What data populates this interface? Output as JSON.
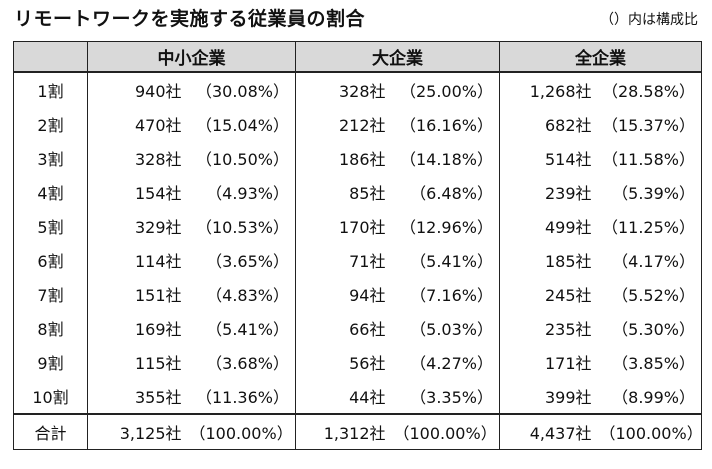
{
  "title": "リモートワークを実施する従業員の割合",
  "note": "（）内は構成比",
  "columns": {
    "stub": "",
    "group1": "中小企業",
    "group2": "大企業",
    "group3": "全企業"
  },
  "rows": [
    {
      "label": "1割",
      "sme": "940社",
      "sme_pct": "（30.08%）",
      "large": "328社",
      "large_pct": "（25.00%）",
      "all": "1,268社",
      "all_pct": "（28.58%）"
    },
    {
      "label": "2割",
      "sme": "470社",
      "sme_pct": "（15.04%）",
      "large": "212社",
      "large_pct": "（16.16%）",
      "all": "682社",
      "all_pct": "（15.37%）"
    },
    {
      "label": "3割",
      "sme": "328社",
      "sme_pct": "（10.50%）",
      "large": "186社",
      "large_pct": "（14.18%）",
      "all": "514社",
      "all_pct": "（11.58%）"
    },
    {
      "label": "4割",
      "sme": "154社",
      "sme_pct": "（4.93%）",
      "large": "85社",
      "large_pct": "（6.48%）",
      "all": "239社",
      "all_pct": "（5.39%）"
    },
    {
      "label": "5割",
      "sme": "329社",
      "sme_pct": "（10.53%）",
      "large": "170社",
      "large_pct": "（12.96%）",
      "all": "499社",
      "all_pct": "（11.25%）"
    },
    {
      "label": "6割",
      "sme": "114社",
      "sme_pct": "（3.65%）",
      "large": "71社",
      "large_pct": "（5.41%）",
      "all": "185社",
      "all_pct": "（4.17%）"
    },
    {
      "label": "7割",
      "sme": "151社",
      "sme_pct": "（4.83%）",
      "large": "94社",
      "large_pct": "（7.16%）",
      "all": "245社",
      "all_pct": "（5.52%）"
    },
    {
      "label": "8割",
      "sme": "169社",
      "sme_pct": "（5.41%）",
      "large": "66社",
      "large_pct": "（5.03%）",
      "all": "235社",
      "all_pct": "（5.30%）"
    },
    {
      "label": "9割",
      "sme": "115社",
      "sme_pct": "（3.68%）",
      "large": "56社",
      "large_pct": "（4.27%）",
      "all": "171社",
      "all_pct": "（3.85%）"
    },
    {
      "label": "10割",
      "sme": "355社",
      "sme_pct": "（11.36%）",
      "large": "44社",
      "large_pct": "（3.35%）",
      "all": "399社",
      "all_pct": "（8.99%）"
    }
  ],
  "total": {
    "label": "合計",
    "sme": "3,125社",
    "sme_pct": "（100.00%）",
    "large": "1,312社",
    "large_pct": "（100.00%）",
    "all": "4,437社",
    "all_pct": "（100.00%）"
  }
}
